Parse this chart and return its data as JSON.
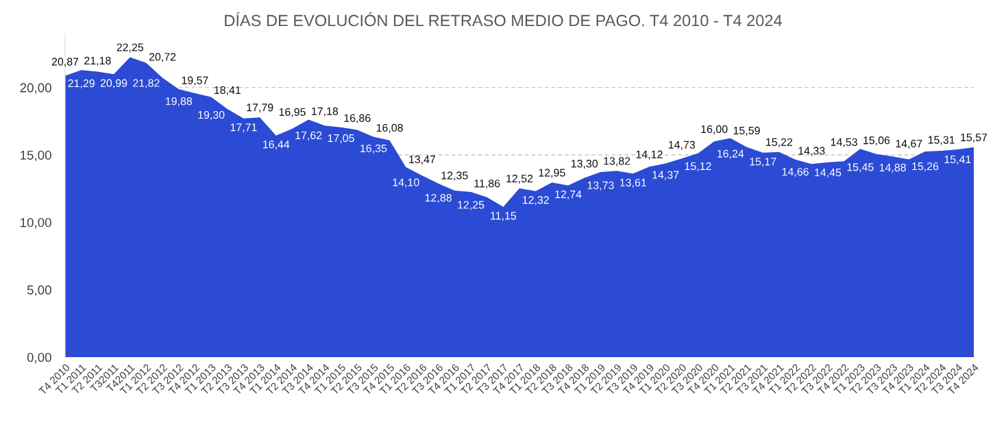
{
  "chart_data": {
    "type": "area",
    "title": "DÍAS DE EVOLUCIÓN DEL RETRASO MEDIO DE PAGO. T4 2010 - T4 2024",
    "categories": [
      "T4 2010",
      "T1 2011",
      "T2 2011",
      "T32011",
      "T42011",
      "T1 2012",
      "T2 2012",
      "T3 2012",
      "T4 2012",
      "T1 2013",
      "T2 2013",
      "T3 2013",
      "T4 2013",
      "T1 2014",
      "T2 2014",
      "T3 2014",
      "T4 2014",
      "T1 2015",
      "T2 2015",
      "T3 2015",
      "T4 2015",
      "T1 2016",
      "T2 2016",
      "T3 2016",
      "T4 2016",
      "T1 2017",
      "T2 2017",
      "T3 2017",
      "T4 2017",
      "T1 2018",
      "T2 2018",
      "T3 2018",
      "T4 2018",
      "T1 2019",
      "T2 2019",
      "T3 2019",
      "T4 2019",
      "T1 2020",
      "T2 2020",
      "T3 2020",
      "T4 2020",
      "T1 2021",
      "T2 2021",
      "T3 2021",
      "T4 2021",
      "T1 2022",
      "T2 2022",
      "T3 2022",
      "T4 2022",
      "T1 2023",
      "T2 2023",
      "T3 2023",
      "T4 2023",
      "T1 2024",
      "T2 2024",
      "T3 2024",
      "T4 2024"
    ],
    "values": [
      20.87,
      21.29,
      21.18,
      20.99,
      22.25,
      21.82,
      20.72,
      19.88,
      19.57,
      19.3,
      18.41,
      17.71,
      17.79,
      16.44,
      16.95,
      17.62,
      17.18,
      17.05,
      16.86,
      16.35,
      16.08,
      14.1,
      13.47,
      12.88,
      12.35,
      12.25,
      11.86,
      11.15,
      12.52,
      12.32,
      12.95,
      12.74,
      13.3,
      13.73,
      13.82,
      13.61,
      14.12,
      14.37,
      14.73,
      15.12,
      16.0,
      16.24,
      15.59,
      15.17,
      15.22,
      14.66,
      14.33,
      14.45,
      14.53,
      15.45,
      15.06,
      14.88,
      14.67,
      15.26,
      15.31,
      15.41,
      15.57
    ],
    "value_labels": [
      "20,87",
      "21,29",
      "21,18",
      "20,99",
      "22,25",
      "21,82",
      "20,72",
      "19,88",
      "19,57",
      "19,30",
      "18,41",
      "17,71",
      "17,79",
      "16,44",
      "16,95",
      "17,62",
      "17,18",
      "17,05",
      "16,86",
      "16,35",
      "16,08",
      "14,10",
      "13,47",
      "12,88",
      "12,35",
      "12,25",
      "11,86",
      "11,15",
      "12,52",
      "12,32",
      "12,95",
      "12,74",
      "13,30",
      "13,73",
      "13,82",
      "13,61",
      "14,12",
      "14,37",
      "14,73",
      "15,12",
      "16,00",
      "16,24",
      "15,59",
      "15,17",
      "15,22",
      "14,66",
      "14,33",
      "14,45",
      "14,53",
      "15,45",
      "15,06",
      "14,88",
      "14,67",
      "15,26",
      "15,31",
      "15,41",
      "15,57"
    ],
    "color": "#2b4bd4",
    "ylim": [
      0,
      24
    ],
    "yticks": [
      {
        "value": 0,
        "label": "0,00"
      },
      {
        "value": 5,
        "label": "5,00"
      },
      {
        "value": 10,
        "label": "10,00"
      },
      {
        "value": 15,
        "label": "15,00"
      },
      {
        "value": 20,
        "label": "20,00"
      }
    ],
    "grid": "y"
  }
}
